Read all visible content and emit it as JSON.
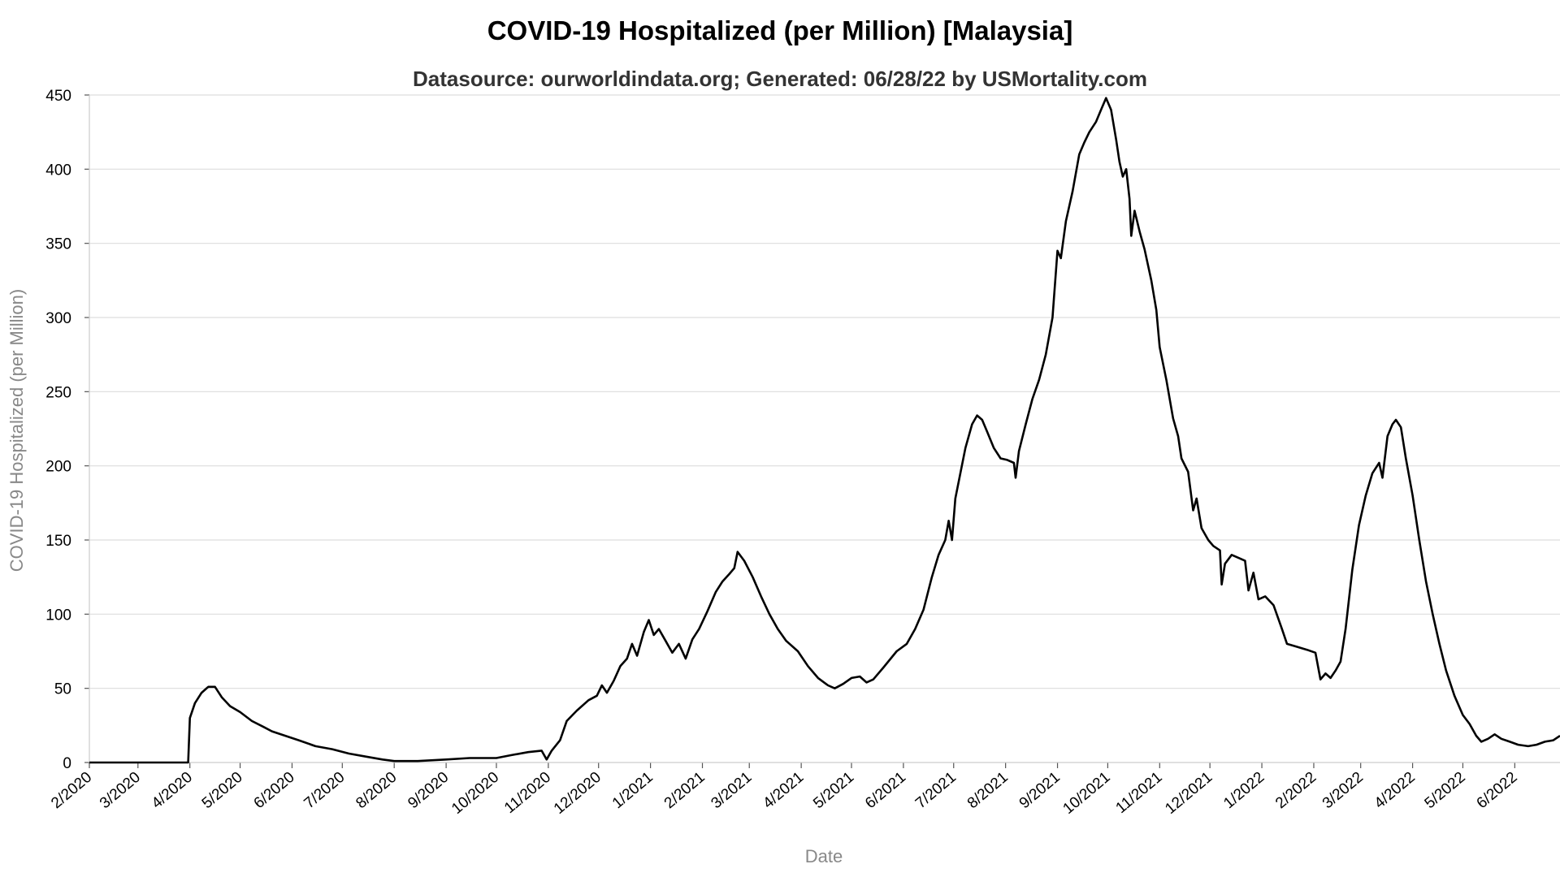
{
  "chart_data": {
    "type": "line",
    "title": "COVID-19 Hospitalized (per Million) [Malaysia]",
    "subtitle": "Datasource: ourworldindata.org; Generated: 06/28/22 by USMortality.com",
    "xlabel": "Date",
    "ylabel": "COVID-19 Hospitalized (per Million)",
    "ylim": [
      0,
      450
    ],
    "yticks": [
      0,
      50,
      100,
      150,
      200,
      250,
      300,
      350,
      400,
      450
    ],
    "x_range": [
      "2020-02-01",
      "2022-06-28"
    ],
    "xticks": [
      {
        "date": "2020-02-01",
        "label": "2/2020"
      },
      {
        "date": "2020-03-01",
        "label": "3/2020"
      },
      {
        "date": "2020-04-01",
        "label": "4/2020"
      },
      {
        "date": "2020-05-01",
        "label": "5/2020"
      },
      {
        "date": "2020-06-01",
        "label": "6/2020"
      },
      {
        "date": "2020-07-01",
        "label": "7/2020"
      },
      {
        "date": "2020-08-01",
        "label": "8/2020"
      },
      {
        "date": "2020-09-01",
        "label": "9/2020"
      },
      {
        "date": "2020-10-01",
        "label": "10/2020"
      },
      {
        "date": "2020-11-01",
        "label": "11/2020"
      },
      {
        "date": "2020-12-01",
        "label": "12/2020"
      },
      {
        "date": "2021-01-01",
        "label": "1/2021"
      },
      {
        "date": "2021-02-01",
        "label": "2/2021"
      },
      {
        "date": "2021-03-01",
        "label": "3/2021"
      },
      {
        "date": "2021-04-01",
        "label": "4/2021"
      },
      {
        "date": "2021-05-01",
        "label": "5/2021"
      },
      {
        "date": "2021-06-01",
        "label": "6/2021"
      },
      {
        "date": "2021-07-01",
        "label": "7/2021"
      },
      {
        "date": "2021-08-01",
        "label": "8/2021"
      },
      {
        "date": "2021-09-01",
        "label": "9/2021"
      },
      {
        "date": "2021-10-01",
        "label": "10/2021"
      },
      {
        "date": "2021-11-01",
        "label": "11/2021"
      },
      {
        "date": "2021-12-01",
        "label": "12/2021"
      },
      {
        "date": "2022-01-01",
        "label": "1/2022"
      },
      {
        "date": "2022-02-01",
        "label": "2/2022"
      },
      {
        "date": "2022-03-01",
        "label": "3/2022"
      },
      {
        "date": "2022-04-01",
        "label": "4/2022"
      },
      {
        "date": "2022-05-01",
        "label": "5/2022"
      },
      {
        "date": "2022-06-01",
        "label": "6/2022"
      }
    ],
    "grid": true,
    "legend": "none",
    "series": [
      {
        "color": "#000000",
        "points": [
          [
            "2020-02-01",
            0
          ],
          [
            "2020-03-31",
            0
          ],
          [
            "2020-04-01",
            30
          ],
          [
            "2020-04-04",
            40
          ],
          [
            "2020-04-08",
            47
          ],
          [
            "2020-04-12",
            51
          ],
          [
            "2020-04-16",
            51
          ],
          [
            "2020-04-20",
            44
          ],
          [
            "2020-04-25",
            38
          ],
          [
            "2020-05-01",
            34
          ],
          [
            "2020-05-08",
            28
          ],
          [
            "2020-05-15",
            24
          ],
          [
            "2020-05-20",
            21
          ],
          [
            "2020-05-28",
            18
          ],
          [
            "2020-06-05",
            15
          ],
          [
            "2020-06-15",
            11
          ],
          [
            "2020-06-25",
            9
          ],
          [
            "2020-07-05",
            6
          ],
          [
            "2020-07-15",
            4
          ],
          [
            "2020-07-25",
            2
          ],
          [
            "2020-08-01",
            1
          ],
          [
            "2020-08-15",
            1
          ],
          [
            "2020-09-01",
            2
          ],
          [
            "2020-09-15",
            3
          ],
          [
            "2020-10-01",
            3
          ],
          [
            "2020-10-10",
            5
          ],
          [
            "2020-10-20",
            7
          ],
          [
            "2020-10-28",
            8
          ],
          [
            "2020-10-31",
            2
          ],
          [
            "2020-11-03",
            8
          ],
          [
            "2020-11-08",
            15
          ],
          [
            "2020-11-12",
            28
          ],
          [
            "2020-11-18",
            35
          ],
          [
            "2020-11-25",
            42
          ],
          [
            "2020-11-30",
            45
          ],
          [
            "2020-12-03",
            52
          ],
          [
            "2020-12-06",
            47
          ],
          [
            "2020-12-10",
            55
          ],
          [
            "2020-12-14",
            65
          ],
          [
            "2020-12-18",
            70
          ],
          [
            "2020-12-21",
            80
          ],
          [
            "2020-12-24",
            72
          ],
          [
            "2020-12-28",
            88
          ],
          [
            "2020-12-31",
            96
          ],
          [
            "2021-01-03",
            86
          ],
          [
            "2021-01-06",
            90
          ],
          [
            "2021-01-10",
            82
          ],
          [
            "2021-01-14",
            74
          ],
          [
            "2021-01-18",
            80
          ],
          [
            "2021-01-22",
            70
          ],
          [
            "2021-01-26",
            83
          ],
          [
            "2021-01-30",
            90
          ],
          [
            "2021-02-04",
            102
          ],
          [
            "2021-02-09",
            115
          ],
          [
            "2021-02-13",
            122
          ],
          [
            "2021-02-17",
            127
          ],
          [
            "2021-02-20",
            131
          ],
          [
            "2021-02-22",
            142
          ],
          [
            "2021-02-26",
            136
          ],
          [
            "2021-03-03",
            125
          ],
          [
            "2021-03-08",
            112
          ],
          [
            "2021-03-13",
            100
          ],
          [
            "2021-03-18",
            90
          ],
          [
            "2021-03-23",
            82
          ],
          [
            "2021-03-30",
            75
          ],
          [
            "2021-04-05",
            65
          ],
          [
            "2021-04-11",
            57
          ],
          [
            "2021-04-17",
            52
          ],
          [
            "2021-04-21",
            50
          ],
          [
            "2021-04-26",
            53
          ],
          [
            "2021-05-01",
            57
          ],
          [
            "2021-05-06",
            58
          ],
          [
            "2021-05-10",
            54
          ],
          [
            "2021-05-14",
            56
          ],
          [
            "2021-05-20",
            64
          ],
          [
            "2021-05-28",
            75
          ],
          [
            "2021-06-03",
            80
          ],
          [
            "2021-06-08",
            90
          ],
          [
            "2021-06-13",
            103
          ],
          [
            "2021-06-18",
            125
          ],
          [
            "2021-06-22",
            140
          ],
          [
            "2021-06-26",
            150
          ],
          [
            "2021-06-28",
            163
          ],
          [
            "2021-06-30",
            150
          ],
          [
            "2021-07-02",
            178
          ],
          [
            "2021-07-05",
            195
          ],
          [
            "2021-07-08",
            212
          ],
          [
            "2021-07-12",
            228
          ],
          [
            "2021-07-15",
            234
          ],
          [
            "2021-07-18",
            231
          ],
          [
            "2021-07-21",
            223
          ],
          [
            "2021-07-25",
            212
          ],
          [
            "2021-07-29",
            205
          ],
          [
            "2021-08-02",
            204
          ],
          [
            "2021-08-06",
            202
          ],
          [
            "2021-08-07",
            192
          ],
          [
            "2021-08-09",
            210
          ],
          [
            "2021-08-13",
            228
          ],
          [
            "2021-08-17",
            245
          ],
          [
            "2021-08-21",
            258
          ],
          [
            "2021-08-25",
            275
          ],
          [
            "2021-08-29",
            300
          ],
          [
            "2021-09-01",
            345
          ],
          [
            "2021-09-03",
            340
          ],
          [
            "2021-09-06",
            365
          ],
          [
            "2021-09-10",
            385
          ],
          [
            "2021-09-14",
            410
          ],
          [
            "2021-09-17",
            418
          ],
          [
            "2021-09-20",
            425
          ],
          [
            "2021-09-24",
            432
          ],
          [
            "2021-09-27",
            440
          ],
          [
            "2021-09-30",
            448
          ],
          [
            "2021-10-03",
            440
          ],
          [
            "2021-10-06",
            420
          ],
          [
            "2021-10-08",
            405
          ],
          [
            "2021-10-10",
            395
          ],
          [
            "2021-10-12",
            400
          ],
          [
            "2021-10-14",
            380
          ],
          [
            "2021-10-15",
            355
          ],
          [
            "2021-10-17",
            372
          ],
          [
            "2021-10-20",
            358
          ],
          [
            "2021-10-23",
            346
          ],
          [
            "2021-10-27",
            325
          ],
          [
            "2021-10-30",
            305
          ],
          [
            "2021-11-01",
            280
          ],
          [
            "2021-11-05",
            258
          ],
          [
            "2021-11-09",
            232
          ],
          [
            "2021-11-12",
            220
          ],
          [
            "2021-11-14",
            205
          ],
          [
            "2021-11-18",
            196
          ],
          [
            "2021-11-21",
            170
          ],
          [
            "2021-11-23",
            178
          ],
          [
            "2021-11-26",
            158
          ],
          [
            "2021-11-30",
            150
          ],
          [
            "2021-12-03",
            146
          ],
          [
            "2021-12-07",
            143
          ],
          [
            "2021-12-08",
            120
          ],
          [
            "2021-12-10",
            134
          ],
          [
            "2021-12-14",
            140
          ],
          [
            "2021-12-18",
            138
          ],
          [
            "2021-12-22",
            136
          ],
          [
            "2021-12-24",
            116
          ],
          [
            "2021-12-27",
            128
          ],
          [
            "2021-12-30",
            110
          ],
          [
            "2022-01-03",
            112
          ],
          [
            "2022-01-08",
            106
          ],
          [
            "2022-01-13",
            90
          ],
          [
            "2022-01-16",
            80
          ],
          [
            "2022-01-22",
            78
          ],
          [
            "2022-01-28",
            76
          ],
          [
            "2022-02-02",
            74
          ],
          [
            "2022-02-05",
            56
          ],
          [
            "2022-02-08",
            60
          ],
          [
            "2022-02-11",
            57
          ],
          [
            "2022-02-14",
            62
          ],
          [
            "2022-02-17",
            68
          ],
          [
            "2022-02-20",
            90
          ],
          [
            "2022-02-24",
            130
          ],
          [
            "2022-02-28",
            160
          ],
          [
            "2022-03-04",
            180
          ],
          [
            "2022-03-08",
            195
          ],
          [
            "2022-03-12",
            202
          ],
          [
            "2022-03-14",
            192
          ],
          [
            "2022-03-17",
            220
          ],
          [
            "2022-03-20",
            228
          ],
          [
            "2022-03-22",
            231
          ],
          [
            "2022-03-25",
            226
          ],
          [
            "2022-03-28",
            205
          ],
          [
            "2022-04-01",
            180
          ],
          [
            "2022-04-05",
            150
          ],
          [
            "2022-04-09",
            122
          ],
          [
            "2022-04-13",
            100
          ],
          [
            "2022-04-17",
            80
          ],
          [
            "2022-04-21",
            62
          ],
          [
            "2022-04-26",
            45
          ],
          [
            "2022-05-01",
            32
          ],
          [
            "2022-05-05",
            26
          ],
          [
            "2022-05-09",
            18
          ],
          [
            "2022-05-12",
            14
          ],
          [
            "2022-05-16",
            16
          ],
          [
            "2022-05-20",
            19
          ],
          [
            "2022-05-24",
            16
          ],
          [
            "2022-05-29",
            14
          ],
          [
            "2022-06-03",
            12
          ],
          [
            "2022-06-09",
            11
          ],
          [
            "2022-06-14",
            12
          ],
          [
            "2022-06-19",
            14
          ],
          [
            "2022-06-24",
            15
          ],
          [
            "2022-06-28",
            18
          ]
        ]
      }
    ]
  }
}
